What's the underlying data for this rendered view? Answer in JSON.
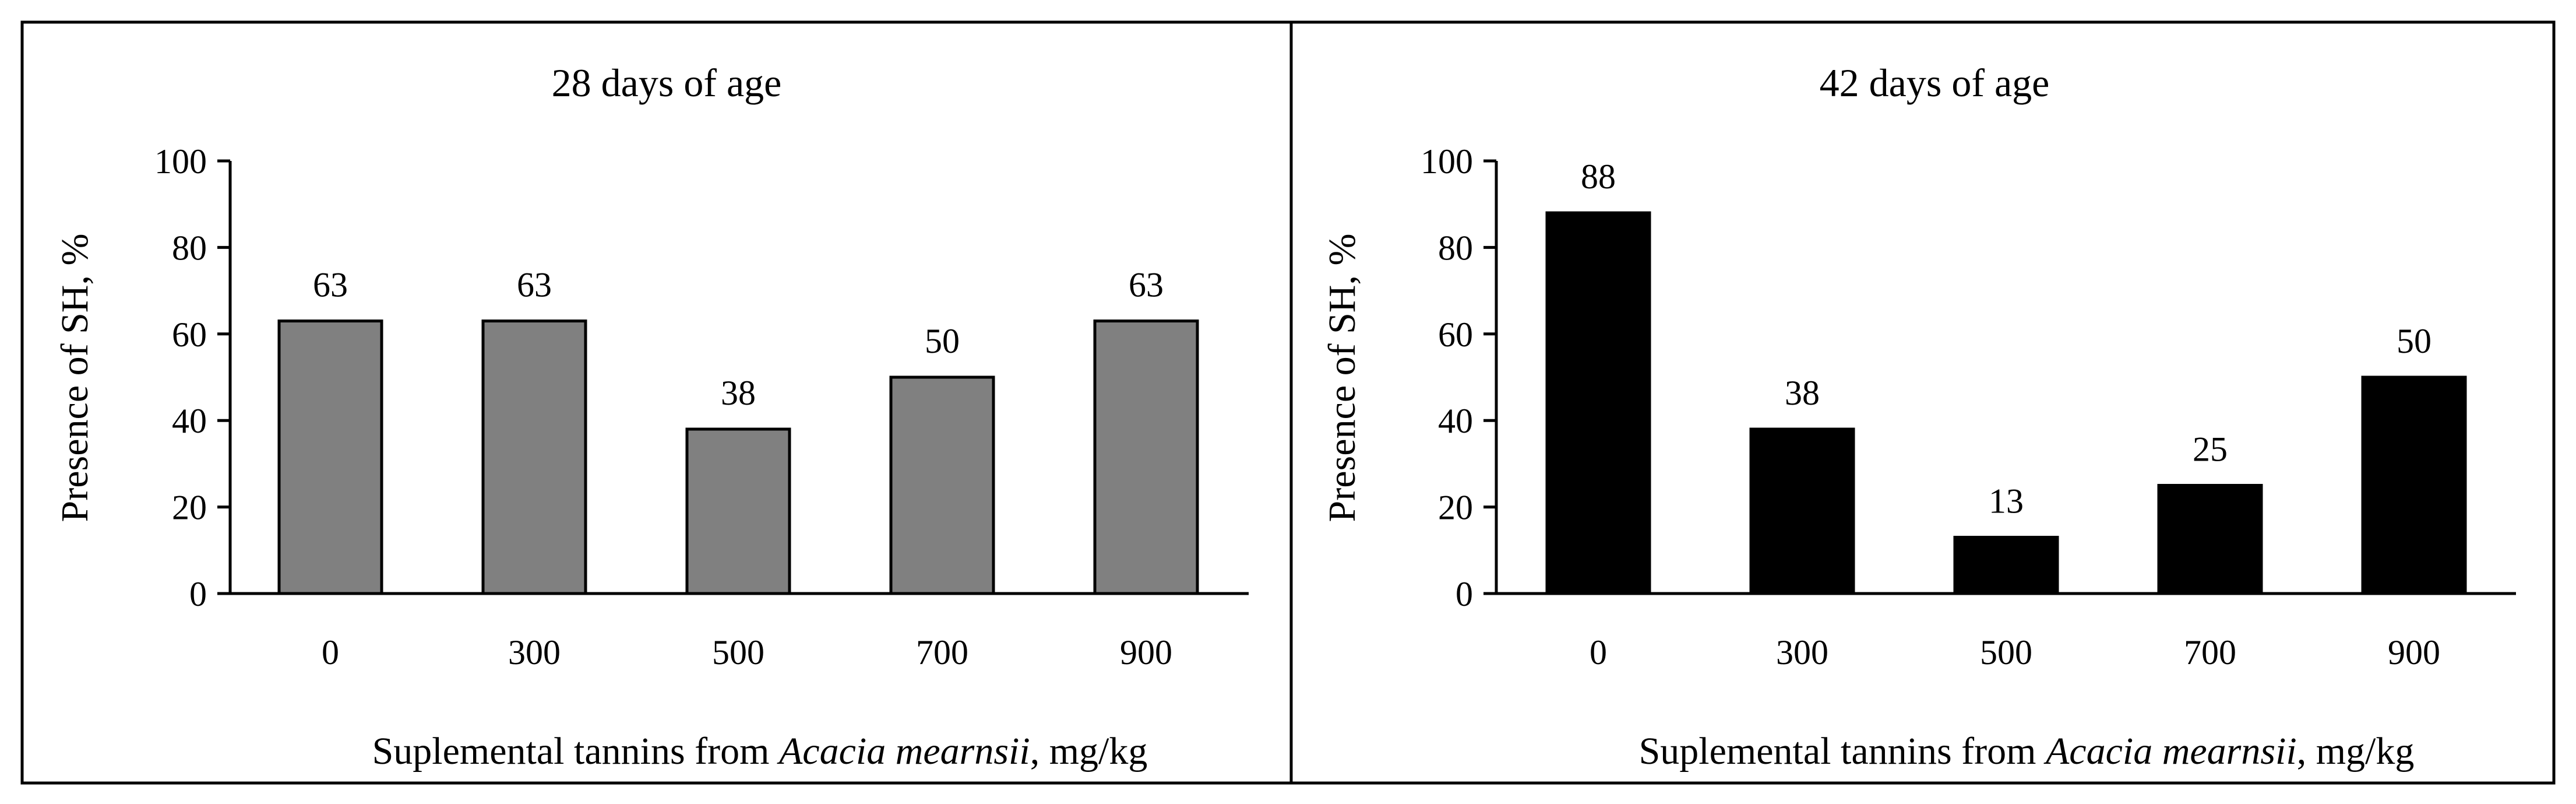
{
  "chart_data": [
    {
      "type": "bar",
      "title": "28 days of age",
      "categories": [
        "0",
        "300",
        "500",
        "700",
        "900"
      ],
      "values": [
        63,
        63,
        38,
        50,
        63
      ],
      "value_labels": [
        "63",
        "63",
        "38",
        "50",
        "63"
      ],
      "ylabel": "Presence of SH, %",
      "xlabel": {
        "prefix": "Suplemental tannins from ",
        "species": "Acacia mearnsii",
        "suffix": ", mg/kg"
      },
      "ylim": [
        0,
        100
      ],
      "yticks": [
        "0",
        "20",
        "40",
        "60",
        "80",
        "100"
      ],
      "bar_color": "#808080",
      "grid": false
    },
    {
      "type": "bar",
      "title": "42 days of age",
      "categories": [
        "0",
        "300",
        "500",
        "700",
        "900"
      ],
      "values": [
        88,
        38,
        13,
        25,
        50
      ],
      "value_labels": [
        "88",
        "38",
        "13",
        "25",
        "50"
      ],
      "ylabel": "Presence of SH, %",
      "xlabel": {
        "prefix": "Suplemental tannins from ",
        "species": "Acacia mearnsii",
        "suffix": ", mg/kg"
      },
      "ylim": [
        0,
        100
      ],
      "yticks": [
        "0",
        "20",
        "40",
        "60",
        "80",
        "100"
      ],
      "bar_color": "#000000",
      "grid": false
    }
  ]
}
